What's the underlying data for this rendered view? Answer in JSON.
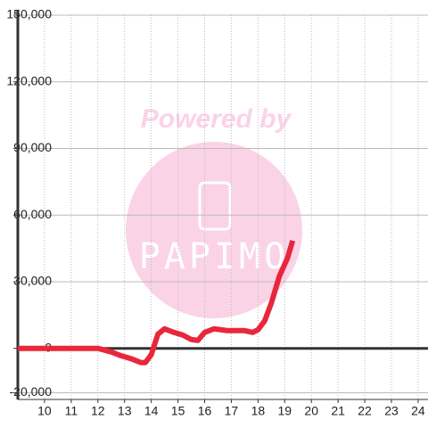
{
  "chart_data": {
    "type": "line",
    "watermark": {
      "top": "Powered by",
      "bottom": "PAPIMO"
    },
    "x": [
      9,
      12,
      12.5,
      12.84,
      13.28,
      13.61,
      13.78,
      14,
      14.25,
      14.5,
      14.85,
      15.18,
      15.5,
      15.75,
      16,
      16.35,
      16.85,
      17.5,
      17.8,
      18,
      18.25,
      18.5,
      18.8,
      19.1,
      19.3
    ],
    "series": [
      {
        "color": "#e8273c",
        "values": [
          0,
          0,
          -1600,
          -3200,
          -4800,
          -6400,
          -6400,
          -2800,
          6400,
          8800,
          7200,
          6000,
          4000,
          3600,
          7200,
          8800,
          8000,
          8000,
          7200,
          8400,
          12400,
          20400,
          32500,
          40500,
          48500
        ]
      }
    ],
    "xlim": [
      9,
      24.37
    ],
    "ylim": [
      -23000,
      150000
    ],
    "xticks": [
      10,
      11,
      12,
      13,
      14,
      15,
      16,
      17,
      18,
      19,
      20,
      21,
      22,
      23,
      24
    ],
    "yticks": [
      {
        "value": -20000,
        "label": "-20,000"
      },
      0,
      {
        "value": 30000,
        "label": "30,000"
      },
      {
        "value": 60000,
        "label": "60,000"
      },
      {
        "value": 90000,
        "label": "90,000"
      },
      {
        "value": 120000,
        "label": "120,000"
      },
      {
        "value": 150000,
        "label": "150,000"
      }
    ],
    "grid": true
  }
}
